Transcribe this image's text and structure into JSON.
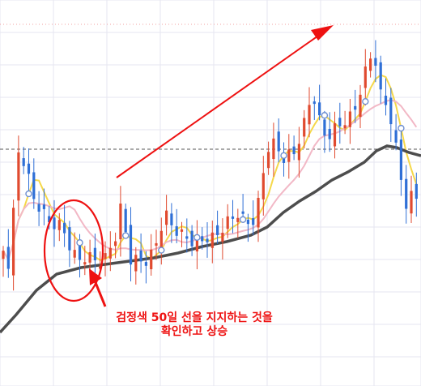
{
  "chart_data": {
    "type": "candlestick",
    "colors": {
      "up": "#e04a2f",
      "down": "#2f6fd6",
      "ma_fast": "#f5d84a",
      "ma_mid": "#f2b8c6",
      "ma_50": "#4d4d4d",
      "annotation": "#ee1111",
      "grid": "#e6e6f0",
      "marker_ring": "#6f8fd0"
    },
    "grid": true,
    "horizontal_lines": [
      "dotted-top",
      "dashed-reference"
    ],
    "series": [],
    "annotation": {
      "text_line1": "검정색 50일 선을 지지하는 것을",
      "text_line2": "확인하고 상승"
    }
  }
}
